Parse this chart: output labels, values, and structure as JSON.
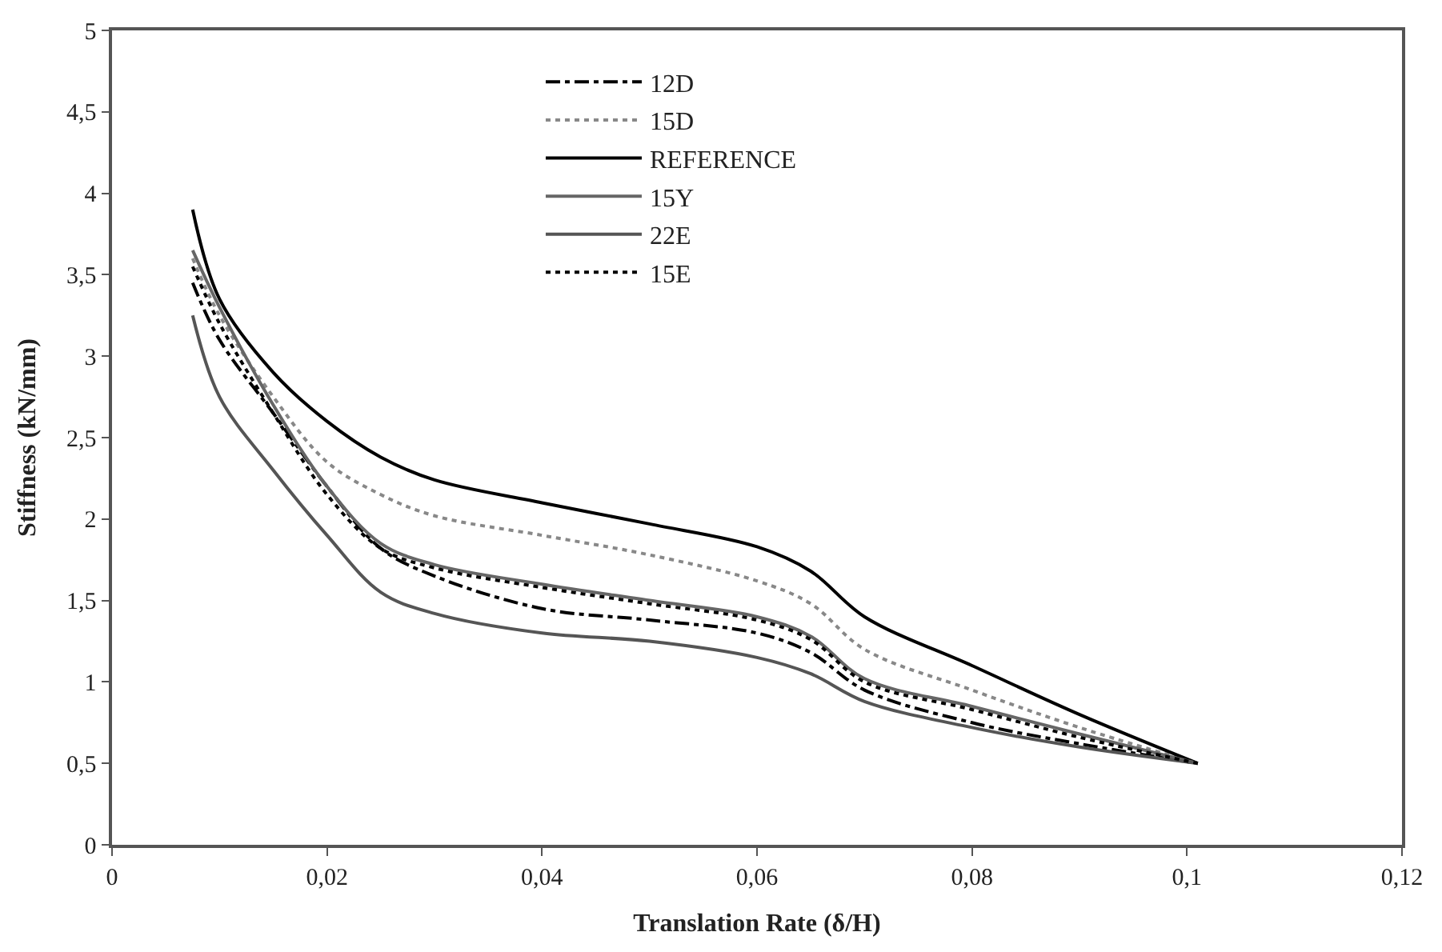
{
  "chart_data": {
    "type": "line",
    "xlabel": "Translation Rate (δ/H)",
    "ylabel": "Stiffness (kN/mm)",
    "x": [
      0.0075,
      0.01,
      0.015,
      0.02,
      0.025,
      0.03,
      0.04,
      0.05,
      0.06,
      0.065,
      0.07,
      0.08,
      0.09,
      0.101
    ],
    "series": [
      {
        "name": "12D",
        "color": "#000000",
        "line_style": "dashed",
        "values": [
          3.45,
          3.1,
          2.65,
          2.2,
          1.82,
          1.65,
          1.45,
          1.38,
          1.3,
          1.18,
          0.95,
          0.75,
          0.62,
          0.5
        ]
      },
      {
        "name": "15D",
        "color": "#888888",
        "line_style": "dotted",
        "values": [
          3.6,
          3.25,
          2.75,
          2.35,
          2.15,
          2.02,
          1.9,
          1.78,
          1.62,
          1.48,
          1.2,
          0.95,
          0.72,
          0.5
        ]
      },
      {
        "name": "REFERENCE",
        "color": "#000000",
        "line_style": "solid",
        "values": [
          3.9,
          3.35,
          2.9,
          2.6,
          2.38,
          2.24,
          2.1,
          1.97,
          1.83,
          1.68,
          1.4,
          1.1,
          0.8,
          0.5
        ]
      },
      {
        "name": "15Y",
        "color": "#666666",
        "line_style": "solid",
        "values": [
          3.65,
          3.3,
          2.7,
          2.2,
          1.85,
          1.72,
          1.6,
          1.5,
          1.4,
          1.28,
          1.02,
          0.85,
          0.68,
          0.5
        ]
      },
      {
        "name": "22E",
        "color": "#555555",
        "line_style": "solid",
        "values": [
          3.25,
          2.75,
          2.3,
          1.9,
          1.55,
          1.42,
          1.3,
          1.25,
          1.15,
          1.05,
          0.88,
          0.72,
          0.6,
          0.5
        ]
      },
      {
        "name": "15E",
        "color": "#000000",
        "line_style": "dotted",
        "values": [
          3.55,
          3.2,
          2.65,
          2.15,
          1.82,
          1.7,
          1.58,
          1.48,
          1.38,
          1.26,
          1.0,
          0.83,
          0.66,
          0.5
        ]
      }
    ],
    "xlim": [
      0,
      0.12
    ],
    "xticks": [
      0,
      {
        "value": 0.02,
        "label": "0,02"
      },
      {
        "value": 0.04,
        "label": "0,04"
      },
      {
        "value": 0.06,
        "label": "0,06"
      },
      {
        "value": 0.08,
        "label": "0,08"
      },
      {
        "value": 0.1,
        "label": "0,1"
      },
      {
        "value": 0.12,
        "label": "0,12"
      }
    ],
    "ylim": [
      0,
      5
    ],
    "yticks": [
      0,
      {
        "value": 0.5,
        "label": "0,5"
      },
      1,
      {
        "value": 1.5,
        "label": "1,5"
      },
      2,
      {
        "value": 2.5,
        "label": "2,5"
      },
      3,
      {
        "value": 3.5,
        "label": "3,5"
      },
      4,
      {
        "value": 4.5,
        "label": "4,5"
      },
      5
    ],
    "legend": "top",
    "marker": "none"
  }
}
